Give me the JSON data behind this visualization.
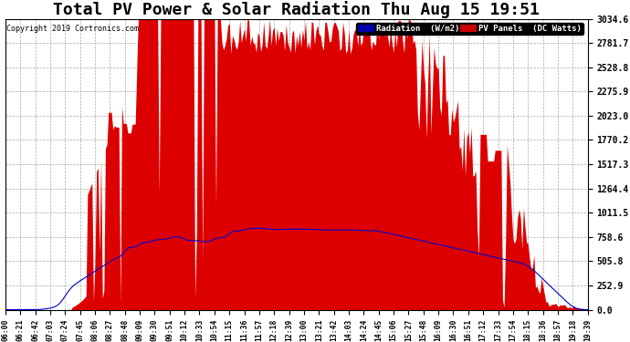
{
  "title": "Total PV Power & Solar Radiation Thu Aug 15 19:51",
  "copyright": "Copyright 2019 Cortronics.com",
  "y_max": 3034.6,
  "y_ticks": [
    0.0,
    252.9,
    505.8,
    758.6,
    1011.5,
    1264.4,
    1517.3,
    1770.2,
    2023.0,
    2275.9,
    2528.8,
    2781.7,
    3034.6
  ],
  "x_labels": [
    "06:00",
    "06:21",
    "06:42",
    "07:03",
    "07:24",
    "07:45",
    "08:06",
    "08:27",
    "08:48",
    "09:09",
    "09:30",
    "09:51",
    "10:12",
    "10:33",
    "10:54",
    "11:15",
    "11:36",
    "11:57",
    "12:18",
    "12:39",
    "13:00",
    "13:21",
    "13:42",
    "14:03",
    "14:24",
    "14:45",
    "15:06",
    "15:27",
    "15:48",
    "16:09",
    "16:30",
    "16:51",
    "17:12",
    "17:33",
    "17:54",
    "18:15",
    "18:36",
    "18:57",
    "19:18",
    "19:39"
  ],
  "radiation_color": "#0000cc",
  "pv_color": "#dd0000",
  "background_color": "#ffffff",
  "grid_color": "#aaaaaa",
  "title_fontsize": 13,
  "legend_radiation_label": "Radiation  (W/m2)",
  "legend_pv_label": "PV Panels  (DC Watts)",
  "legend_bg_radiation": "#0000aa",
  "legend_bg_pv": "#cc0000",
  "fig_width": 6.9,
  "fig_height": 3.75,
  "dpi": 100
}
